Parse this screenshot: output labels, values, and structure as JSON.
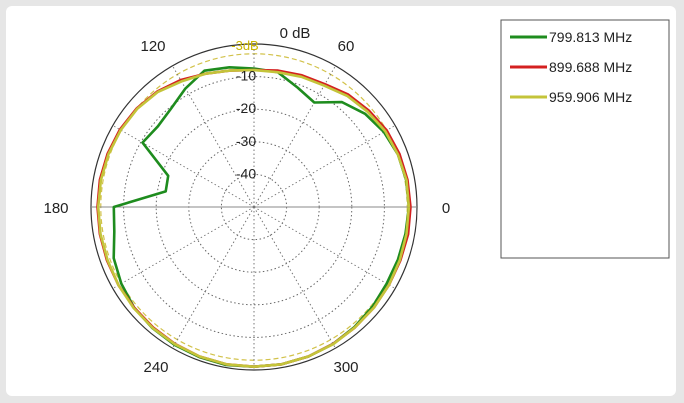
{
  "chart_data": {
    "type": "polar-line",
    "title": "",
    "radial_unit_label": "0 dB",
    "radial_ticks": [
      "-10",
      "-20",
      "-30",
      "-40"
    ],
    "radial_range_db": [
      -50,
      0
    ],
    "reference_circle": {
      "label": "-3dB",
      "value_db": -3,
      "color": "#d2c24a"
    },
    "angle_ticks": [
      "0",
      "60",
      "120",
      "180",
      "240",
      "300"
    ],
    "angle_tick_values": [
      0,
      60,
      120,
      180,
      240,
      300
    ],
    "grid": true,
    "legend_position": "right",
    "angle_deg": [
      0,
      10,
      20,
      30,
      40,
      50,
      60,
      70,
      80,
      90,
      100,
      110,
      120,
      130,
      140,
      150,
      160,
      170,
      180,
      190,
      200,
      210,
      220,
      230,
      240,
      250,
      260,
      270,
      280,
      290,
      300,
      310,
      320,
      330,
      340,
      350
    ],
    "series": [
      {
        "name": "799.813 MHz",
        "color": "#1e8c1e",
        "values": [
          -2.5,
          -2.6,
          -3.0,
          -4.0,
          -5.5,
          -8.0,
          -13.0,
          -11.0,
          -8.0,
          -7.5,
          -6.5,
          -5.5,
          -8.0,
          -10.5,
          -11.5,
          -10.5,
          -22.0,
          -22.5,
          -7.0,
          -6.5,
          -4.2,
          -3.0,
          -2.0,
          -1.5,
          -1.2,
          -1.0,
          -0.8,
          -1.0,
          -1.0,
          -1.2,
          -1.5,
          -2.0,
          -2.5,
          -3.0,
          -3.0,
          -2.8
        ]
      },
      {
        "name": "899.688 MHz",
        "color": "#d42020",
        "values": [
          -2.0,
          -2.2,
          -2.5,
          -3.0,
          -4.0,
          -5.0,
          -6.5,
          -7.0,
          -7.5,
          -8.0,
          -7.5,
          -6.5,
          -5.0,
          -3.8,
          -3.0,
          -2.5,
          -2.2,
          -2.0,
          -2.0,
          -2.0,
          -2.0,
          -2.0,
          -2.0,
          -1.8,
          -1.5,
          -1.2,
          -1.0,
          -1.0,
          -1.0,
          -1.2,
          -1.5,
          -1.8,
          -2.0,
          -2.2,
          -2.2,
          -2.0
        ]
      },
      {
        "name": "959.906 MHz",
        "color": "#c4c43a",
        "values": [
          -2.5,
          -2.5,
          -3.0,
          -3.5,
          -4.5,
          -5.5,
          -7.0,
          -7.5,
          -8.0,
          -8.0,
          -7.5,
          -6.5,
          -5.5,
          -4.0,
          -3.2,
          -2.8,
          -2.5,
          -2.3,
          -2.2,
          -2.2,
          -2.2,
          -2.0,
          -1.8,
          -1.6,
          -1.4,
          -1.2,
          -1.0,
          -1.0,
          -1.0,
          -1.2,
          -1.4,
          -1.8,
          -2.0,
          -2.2,
          -2.4,
          -2.5
        ]
      }
    ]
  }
}
